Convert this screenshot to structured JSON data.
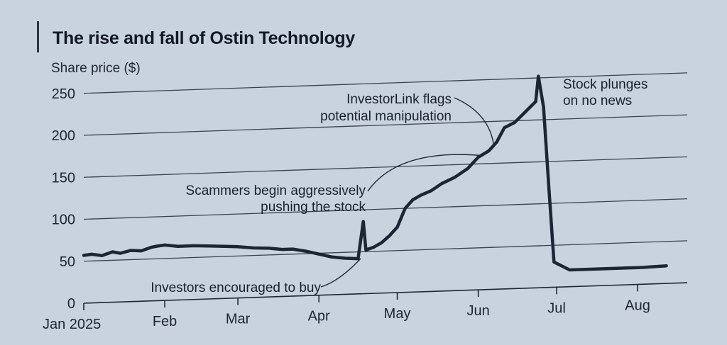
{
  "chart_data": {
    "type": "line",
    "title": "The rise and fall of Ostin Technology",
    "ylabel": "Share price ($)",
    "xlabel": "",
    "ylim": [
      0,
      250
    ],
    "yticks": [
      0,
      50,
      100,
      150,
      200,
      250
    ],
    "xticks": [
      {
        "label": "Jan 2025",
        "date": "2025-01-01"
      },
      {
        "label": "Feb",
        "date": "2025-02-01"
      },
      {
        "label": "Mar",
        "date": "2025-03-01"
      },
      {
        "label": "Apr",
        "date": "2025-04-01"
      },
      {
        "label": "May",
        "date": "2025-05-01"
      },
      {
        "label": "Jun",
        "date": "2025-06-01"
      },
      {
        "label": "Jul",
        "date": "2025-07-01"
      },
      {
        "label": "Aug",
        "date": "2025-08-01"
      }
    ],
    "grid": true,
    "line_color": "#1c2533",
    "series": [
      {
        "name": "",
        "x": [
          "2025-01-01",
          "2025-01-04",
          "2025-01-08",
          "2025-01-12",
          "2025-01-15",
          "2025-01-19",
          "2025-01-23",
          "2025-01-27",
          "2025-01-29",
          "2025-02-01",
          "2025-02-06",
          "2025-02-12",
          "2025-02-18",
          "2025-02-24",
          "2025-03-01",
          "2025-03-07",
          "2025-03-13",
          "2025-03-18",
          "2025-03-22",
          "2025-03-27",
          "2025-04-01",
          "2025-04-06",
          "2025-04-11",
          "2025-04-16",
          "2025-04-18",
          "2025-04-19",
          "2025-04-22",
          "2025-04-25",
          "2025-04-28",
          "2025-05-01",
          "2025-05-04",
          "2025-05-07",
          "2025-05-10",
          "2025-05-14",
          "2025-05-18",
          "2025-05-23",
          "2025-05-28",
          "2025-06-01",
          "2025-06-05",
          "2025-06-08",
          "2025-06-11",
          "2025-06-15",
          "2025-06-19",
          "2025-06-23",
          "2025-06-24",
          "2025-06-26",
          "2025-06-28",
          "2025-06-30",
          "2025-07-06",
          "2025-07-14",
          "2025-07-24",
          "2025-08-03",
          "2025-08-12"
        ],
        "y": [
          57,
          58,
          56,
          60,
          58,
          61,
          60,
          64,
          65,
          66,
          64,
          64,
          63,
          62,
          61,
          59,
          58,
          56,
          56,
          53,
          49,
          45,
          43,
          42,
          86,
          52,
          55,
          60,
          68,
          78,
          100,
          110,
          115,
          120,
          128,
          135,
          145,
          158,
          165,
          175,
          192,
          198,
          210,
          222,
          252,
          215,
          120,
          30,
          20,
          20,
          20,
          20,
          21
        ]
      }
    ],
    "annotations": [
      {
        "lines": [
          "Investors encouraged to buy"
        ],
        "date": "2025-04-17",
        "value": 42
      },
      {
        "lines": [
          "Scammers begin aggressively",
          "pushing the stock"
        ],
        "date": "2025-06-02",
        "value": 160
      },
      {
        "lines": [
          "InvestorLink flags",
          "potential manipulation"
        ],
        "date": "2025-06-07",
        "value": 170
      },
      {
        "lines": [
          "Stock plunges",
          "on no news"
        ],
        "date": "2025-06-24",
        "value": 250
      }
    ]
  }
}
